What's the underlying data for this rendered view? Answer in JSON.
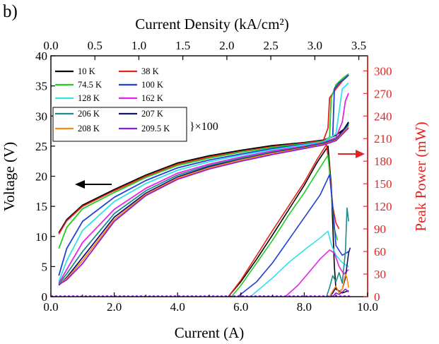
{
  "panel_label": "b)",
  "chart_data": {
    "type": "line",
    "xlabel": "Current (A)",
    "ylabel": "Voltage (V)",
    "y2label": "Peak Power (mW)",
    "x2label": "Current Density (kA/cm²)",
    "xlim": [
      0,
      10
    ],
    "ylim": [
      0,
      40
    ],
    "y2lim": [
      0,
      320
    ],
    "x2lim": [
      0,
      3.6
    ],
    "x_ticks": [
      "0.0",
      "2.0",
      "4.0",
      "6.0",
      "8.0",
      "10.0"
    ],
    "y_ticks": [
      "0",
      "5",
      "10",
      "15",
      "20",
      "25",
      "30",
      "35",
      "40"
    ],
    "y2_ticks": [
      "0",
      "30",
      "60",
      "90",
      "120",
      "150",
      "180",
      "210",
      "240",
      "270",
      "300"
    ],
    "x2_ticks": [
      "0.0",
      "0.5",
      "1.0",
      "1.5",
      "2.0",
      "2.5",
      "3.0",
      "3.5"
    ],
    "annotation": "}×100",
    "colors": {
      "axis_right": "#e8231f",
      "arrow_left": "#000000",
      "arrow_right": "#e8231f"
    },
    "series": [
      {
        "name": "10 K",
        "color": "#000000",
        "voltage": [
          [
            0.25,
            10.6
          ],
          [
            0.5,
            12.8
          ],
          [
            1.0,
            15.2
          ],
          [
            2.0,
            17.8
          ],
          [
            3.0,
            20.2
          ],
          [
            4.0,
            22.2
          ],
          [
            5.0,
            23.4
          ],
          [
            6.0,
            24.3
          ],
          [
            7.0,
            25.1
          ],
          [
            8.0,
            25.6
          ],
          [
            8.6,
            26.0
          ],
          [
            9.0,
            26.8
          ],
          [
            9.25,
            27.8
          ],
          [
            9.4,
            29.0
          ]
        ],
        "power": [
          [
            5.6,
            0
          ],
          [
            6.0,
            20
          ],
          [
            6.5,
            50
          ],
          [
            7.0,
            82
          ],
          [
            7.5,
            115
          ],
          [
            8.0,
            148
          ],
          [
            8.4,
            178
          ],
          [
            8.75,
            200
          ],
          [
            8.85,
            150
          ],
          [
            8.95,
            40
          ],
          [
            9.0,
            10
          ],
          [
            9.2,
            5
          ],
          [
            9.4,
            8
          ]
        ]
      },
      {
        "name": "38 K",
        "color": "#e8231f",
        "voltage": [
          [
            0.25,
            10.4
          ],
          [
            0.5,
            12.6
          ],
          [
            1.0,
            15.0
          ],
          [
            2.0,
            17.6
          ],
          [
            3.0,
            20.0
          ],
          [
            4.0,
            22.0
          ],
          [
            5.0,
            23.2
          ],
          [
            6.0,
            24.1
          ],
          [
            7.0,
            24.9
          ],
          [
            8.0,
            25.5
          ],
          [
            8.6,
            25.9
          ],
          [
            8.75,
            28.0
          ],
          [
            8.8,
            33.0
          ],
          [
            9.0,
            34.5
          ],
          [
            9.2,
            35.8
          ],
          [
            9.4,
            36.8
          ]
        ],
        "power": [
          [
            5.6,
            0
          ],
          [
            6.0,
            22
          ],
          [
            6.5,
            55
          ],
          [
            7.0,
            88
          ],
          [
            7.5,
            120
          ],
          [
            8.0,
            152
          ],
          [
            8.4,
            182
          ],
          [
            8.7,
            202
          ],
          [
            8.8,
            170
          ],
          [
            8.9,
            120
          ],
          [
            9.0,
            98
          ],
          [
            9.1,
            90
          ]
        ]
      },
      {
        "name": "74.5 K",
        "color": "#22cc22",
        "voltage": [
          [
            0.25,
            8.0
          ],
          [
            0.5,
            11.5
          ],
          [
            1.0,
            14.6
          ],
          [
            2.0,
            17.3
          ],
          [
            3.0,
            19.8
          ],
          [
            4.0,
            21.8
          ],
          [
            5.0,
            23.0
          ],
          [
            6.0,
            24.0
          ],
          [
            7.0,
            24.8
          ],
          [
            8.0,
            25.4
          ],
          [
            8.6,
            25.8
          ],
          [
            8.8,
            26.5
          ],
          [
            8.85,
            33.0
          ],
          [
            9.0,
            35.2
          ],
          [
            9.2,
            36.2
          ],
          [
            9.4,
            37.0
          ]
        ],
        "power": [
          [
            5.7,
            0
          ],
          [
            6.0,
            15
          ],
          [
            6.5,
            45
          ],
          [
            7.0,
            75
          ],
          [
            7.5,
            108
          ],
          [
            8.0,
            138
          ],
          [
            8.4,
            165
          ],
          [
            8.75,
            188
          ],
          [
            8.85,
            140
          ],
          [
            8.95,
            90
          ],
          [
            9.05,
            75
          ]
        ]
      },
      {
        "name": "100 K",
        "color": "#1f3fd6",
        "voltage": [
          [
            0.25,
            3.5
          ],
          [
            0.5,
            8.0
          ],
          [
            1.0,
            12.5
          ],
          [
            2.0,
            16.5
          ],
          [
            3.0,
            19.3
          ],
          [
            4.0,
            21.4
          ],
          [
            5.0,
            22.7
          ],
          [
            6.0,
            23.7
          ],
          [
            7.0,
            24.6
          ],
          [
            8.0,
            25.3
          ],
          [
            8.6,
            25.7
          ],
          [
            8.9,
            26.6
          ],
          [
            8.95,
            34.5
          ],
          [
            9.1,
            35.5
          ],
          [
            9.3,
            36.3
          ],
          [
            9.4,
            36.8
          ]
        ],
        "power": [
          [
            5.9,
            0
          ],
          [
            6.5,
            20
          ],
          [
            7.0,
            45
          ],
          [
            7.5,
            75
          ],
          [
            8.0,
            105
          ],
          [
            8.5,
            135
          ],
          [
            8.8,
            162
          ],
          [
            8.9,
            120
          ],
          [
            9.0,
            68
          ],
          [
            9.2,
            55
          ],
          [
            9.4,
            60
          ]
        ]
      },
      {
        "name": "128 K",
        "color": "#33e1e8",
        "voltage": [
          [
            0.25,
            2.5
          ],
          [
            0.5,
            6.0
          ],
          [
            1.0,
            11.0
          ],
          [
            2.0,
            15.8
          ],
          [
            3.0,
            18.8
          ],
          [
            4.0,
            21.0
          ],
          [
            5.0,
            22.4
          ],
          [
            6.0,
            23.5
          ],
          [
            7.0,
            24.4
          ],
          [
            8.0,
            25.2
          ],
          [
            8.6,
            25.7
          ],
          [
            9.0,
            27.0
          ],
          [
            9.2,
            34.5
          ],
          [
            9.4,
            35.5
          ]
        ],
        "power": [
          [
            6.3,
            0
          ],
          [
            7.0,
            25
          ],
          [
            7.5,
            45
          ],
          [
            8.0,
            62
          ],
          [
            8.5,
            78
          ],
          [
            8.75,
            87
          ],
          [
            8.85,
            70
          ],
          [
            9.0,
            55
          ],
          [
            9.2,
            45
          ],
          [
            9.4,
            40
          ]
        ]
      },
      {
        "name": "162 K",
        "color": "#e624e6",
        "voltage": [
          [
            0.25,
            2.2
          ],
          [
            0.5,
            4.5
          ],
          [
            1.0,
            9.0
          ],
          [
            2.0,
            14.5
          ],
          [
            3.0,
            18.0
          ],
          [
            4.0,
            20.5
          ],
          [
            5.0,
            22.0
          ],
          [
            6.0,
            23.2
          ],
          [
            7.0,
            24.2
          ],
          [
            8.0,
            25.0
          ],
          [
            8.6,
            25.6
          ],
          [
            9.0,
            26.4
          ],
          [
            9.2,
            29.0
          ],
          [
            9.3,
            32.5
          ],
          [
            9.4,
            33.8
          ]
        ],
        "power": [
          [
            7.4,
            0
          ],
          [
            7.8,
            15
          ],
          [
            8.2,
            35
          ],
          [
            8.5,
            50
          ],
          [
            8.8,
            62
          ],
          [
            8.95,
            58
          ],
          [
            9.1,
            40
          ],
          [
            9.25,
            30
          ],
          [
            9.4,
            36
          ]
        ]
      },
      {
        "name": "206 K",
        "color": "#1e8a8a",
        "voltage": [
          [
            0.25,
            2.1
          ],
          [
            0.5,
            3.8
          ],
          [
            1.0,
            7.5
          ],
          [
            2.0,
            13.8
          ],
          [
            3.0,
            17.6
          ],
          [
            4.0,
            20.2
          ],
          [
            5.0,
            21.8
          ],
          [
            6.0,
            23.0
          ],
          [
            7.0,
            24.0
          ],
          [
            8.0,
            24.9
          ],
          [
            8.6,
            25.5
          ],
          [
            9.0,
            26.2
          ],
          [
            9.4,
            28.5
          ]
        ],
        "power": [
          [
            8.7,
            0
          ],
          [
            8.8,
            12
          ],
          [
            8.9,
            28
          ],
          [
            9.0,
            20
          ],
          [
            9.1,
            32
          ],
          [
            9.2,
            18
          ],
          [
            9.3,
            60
          ],
          [
            9.35,
            118
          ],
          [
            9.4,
            100
          ]
        ]
      },
      {
        "name": "207 K",
        "color": "#141470",
        "voltage": [
          [
            0.25,
            1.9
          ],
          [
            0.5,
            3.2
          ],
          [
            1.0,
            6.5
          ],
          [
            2.0,
            13.2
          ],
          [
            3.0,
            17.2
          ],
          [
            4.0,
            19.9
          ],
          [
            5.0,
            21.6
          ],
          [
            6.0,
            22.8
          ],
          [
            7.0,
            23.9
          ],
          [
            8.0,
            24.8
          ],
          [
            8.6,
            25.4
          ],
          [
            9.0,
            26.1
          ],
          [
            9.4,
            28.8
          ]
        ],
        "power": [
          [
            8.8,
            0
          ],
          [
            8.9,
            5
          ],
          [
            9.0,
            12
          ],
          [
            9.1,
            6
          ],
          [
            9.2,
            10
          ],
          [
            9.3,
            25
          ],
          [
            9.4,
            58
          ],
          [
            9.45,
            65
          ]
        ]
      },
      {
        "name": "208 K",
        "color": "#ff8a1a",
        "voltage": [
          [
            0.25,
            2.0
          ],
          [
            0.5,
            3.0
          ],
          [
            1.0,
            6.0
          ],
          [
            2.0,
            12.8
          ],
          [
            3.0,
            17.0
          ],
          [
            4.0,
            19.7
          ],
          [
            5.0,
            21.4
          ],
          [
            6.0,
            22.7
          ],
          [
            7.0,
            23.8
          ],
          [
            8.0,
            24.7
          ],
          [
            8.6,
            25.3
          ],
          [
            9.0,
            26.0
          ],
          [
            9.4,
            28.2
          ]
        ],
        "power": [
          [
            8.8,
            0
          ],
          [
            8.9,
            8
          ],
          [
            9.0,
            14
          ],
          [
            9.1,
            5
          ],
          [
            9.2,
            10
          ],
          [
            9.3,
            30
          ],
          [
            9.35,
            25
          ],
          [
            9.4,
            12
          ]
        ]
      },
      {
        "name": "209.5 K",
        "color": "#8a1fe0",
        "voltage": [
          [
            0.25,
            2.0
          ],
          [
            0.5,
            2.8
          ],
          [
            1.0,
            5.5
          ],
          [
            2.0,
            12.5
          ],
          [
            3.0,
            16.8
          ],
          [
            4.0,
            19.5
          ],
          [
            5.0,
            21.2
          ],
          [
            6.0,
            22.5
          ],
          [
            7.0,
            23.6
          ],
          [
            8.0,
            24.6
          ],
          [
            8.6,
            25.2
          ],
          [
            9.0,
            25.9
          ],
          [
            9.4,
            28.0
          ]
        ],
        "power": [
          [
            8.9,
            0
          ],
          [
            9.0,
            5
          ],
          [
            9.1,
            3
          ],
          [
            9.2,
            6
          ],
          [
            9.3,
            10
          ],
          [
            9.4,
            6
          ]
        ]
      }
    ]
  }
}
